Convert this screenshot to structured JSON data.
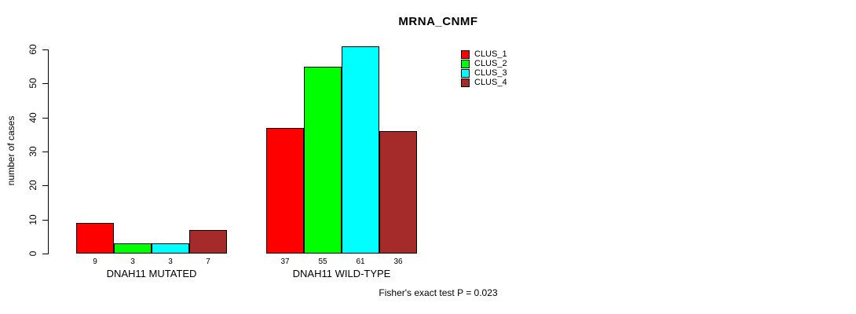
{
  "title": "MRNA_CNMF",
  "chart_data": {
    "type": "bar",
    "title": "MRNA_CNMF",
    "ylabel": "number of cases",
    "ylim": [
      0,
      60
    ],
    "yticks": [
      0,
      10,
      20,
      30,
      40,
      50,
      60
    ],
    "grid": false,
    "legend_position": "top-right",
    "groups": [
      "DNAH11 MUTATED",
      "DNAH11 WILD-TYPE"
    ],
    "series": [
      {
        "name": "CLUS_1",
        "color": "#ff0000",
        "values": [
          9,
          37
        ]
      },
      {
        "name": "CLUS_2",
        "color": "#00ff00",
        "values": [
          3,
          55
        ]
      },
      {
        "name": "CLUS_3",
        "color": "#00ffff",
        "values": [
          3,
          61
        ]
      },
      {
        "name": "CLUS_4",
        "color": "#a52a2a",
        "values": [
          7,
          36
        ]
      }
    ],
    "bar_value_labels": [
      [
        "9",
        "3",
        "3",
        "7"
      ],
      [
        "37",
        "55",
        "61",
        "36"
      ]
    ],
    "annotation": "Fisher's exact test P = 0.023"
  }
}
